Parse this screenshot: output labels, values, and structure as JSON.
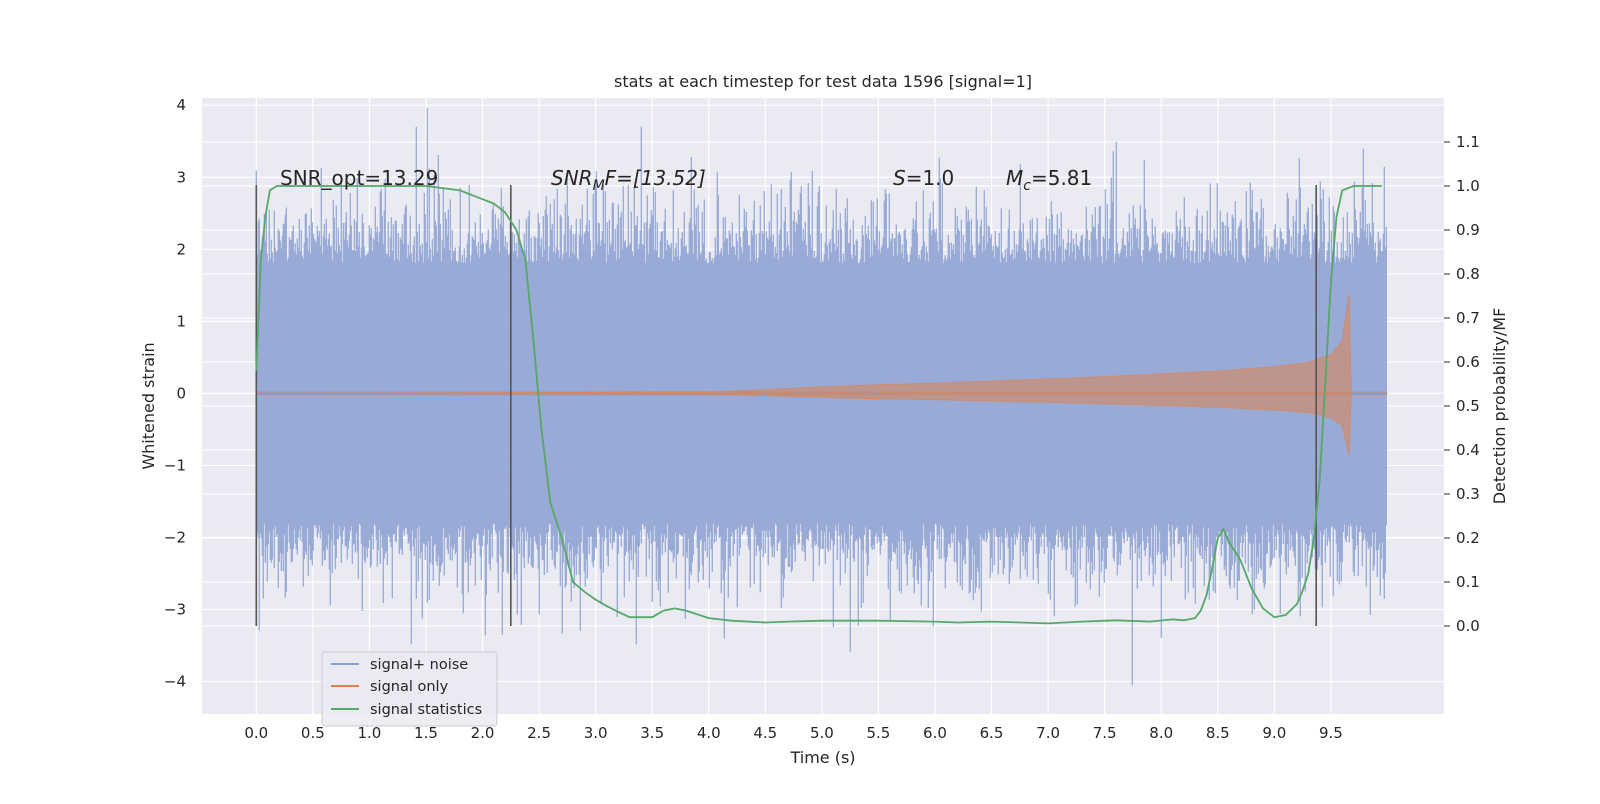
{
  "chart_data": {
    "type": "line",
    "title": "stats at each timestep for test data 1596 [signal=1]",
    "xlabel": "Time (s)",
    "ylabel_left": "Whitened strain",
    "ylabel_right": "Detection probability/MF",
    "xlim": [
      -0.48,
      10.5
    ],
    "ylim_left": [
      -4.45,
      4.1
    ],
    "ylim_right": [
      -0.2,
      1.2
    ],
    "x_ticks": [
      "0.0",
      "0.5",
      "1.0",
      "1.5",
      "2.0",
      "2.5",
      "3.0",
      "3.5",
      "4.0",
      "4.5",
      "5.0",
      "5.5",
      "6.0",
      "6.5",
      "7.0",
      "7.5",
      "8.0",
      "8.5",
      "9.0",
      "9.5"
    ],
    "y_ticks_left": [
      "4",
      "3",
      "2",
      "1",
      "0",
      "−1",
      "−2",
      "−3",
      "−4"
    ],
    "y_ticks_right": [
      "1.1",
      "1.0",
      "0.9",
      "0.8",
      "0.7",
      "0.6",
      "0.5",
      "0.4",
      "0.3",
      "0.2",
      "0.1",
      "0.0"
    ],
    "grid": true,
    "legend_position": "lower-left",
    "annotations": [
      {
        "id": "snr-opt",
        "text": "SNR_opt=13.29"
      },
      {
        "id": "snr-mf",
        "base": "SNR",
        "sub": "M",
        "rest": "F=[13.52]"
      },
      {
        "id": "s-value",
        "base": "S",
        "rest": "=1.0"
      },
      {
        "id": "mc-value",
        "base": "M",
        "sub": "c",
        "rest": "=5.81"
      }
    ],
    "vertical_markers_s": [
      0.0,
      2.25,
      9.37
    ],
    "series": [
      {
        "name": "signal+ noise",
        "color": "#8a9fd0",
        "axis": "left",
        "x_range": [
          0.0,
          9.99
        ],
        "typical_envelope": 1.9,
        "peak_min": -4.05,
        "peak_max": 3.7
      },
      {
        "name": "signal only",
        "color": "#dd8452",
        "axis": "left",
        "x": [
          0.0,
          4.0,
          4.5,
          5.0,
          5.5,
          6.0,
          6.5,
          7.0,
          7.5,
          8.0,
          8.5,
          9.0,
          9.3,
          9.5,
          9.6,
          9.66,
          9.68,
          10.0
        ],
        "amplitude": [
          0.0,
          0.02,
          0.05,
          0.09,
          0.12,
          0.14,
          0.17,
          0.2,
          0.23,
          0.27,
          0.31,
          0.37,
          0.43,
          0.54,
          0.72,
          1.38,
          0.0,
          0.0
        ]
      },
      {
        "name": "signal statistics",
        "color": "#55a868",
        "axis": "right",
        "x": [
          0.0,
          0.04,
          0.08,
          0.12,
          0.18,
          0.3,
          0.5,
          1.0,
          1.5,
          1.8,
          2.0,
          2.1,
          2.2,
          2.3,
          2.38,
          2.45,
          2.52,
          2.6,
          2.7,
          2.8,
          2.9,
          3.0,
          3.1,
          3.2,
          3.3,
          3.5,
          3.6,
          3.7,
          3.8,
          4.0,
          4.2,
          4.5,
          4.7,
          5.0,
          5.5,
          6.0,
          6.2,
          6.5,
          7.0,
          7.3,
          7.6,
          7.9,
          8.1,
          8.2,
          8.3,
          8.35,
          8.4,
          8.45,
          8.5,
          8.55,
          8.6,
          8.7,
          8.8,
          8.9,
          9.0,
          9.1,
          9.2,
          9.25,
          9.3,
          9.35,
          9.4,
          9.45,
          9.5,
          9.55,
          9.6,
          9.7,
          9.8,
          9.95
        ],
        "y": [
          0.58,
          0.83,
          0.93,
          0.99,
          1.0,
          1.0,
          1.0,
          1.0,
          1.0,
          0.99,
          0.97,
          0.96,
          0.94,
          0.9,
          0.83,
          0.65,
          0.45,
          0.28,
          0.2,
          0.1,
          0.078,
          0.06,
          0.045,
          0.032,
          0.02,
          0.02,
          0.035,
          0.04,
          0.035,
          0.018,
          0.012,
          0.008,
          0.01,
          0.012,
          0.012,
          0.01,
          0.008,
          0.01,
          0.006,
          0.01,
          0.013,
          0.01,
          0.015,
          0.013,
          0.018,
          0.035,
          0.07,
          0.13,
          0.2,
          0.22,
          0.19,
          0.15,
          0.085,
          0.04,
          0.02,
          0.025,
          0.05,
          0.08,
          0.12,
          0.2,
          0.33,
          0.55,
          0.78,
          0.93,
          0.99,
          1.0,
          1.0,
          1.0
        ]
      }
    ]
  }
}
